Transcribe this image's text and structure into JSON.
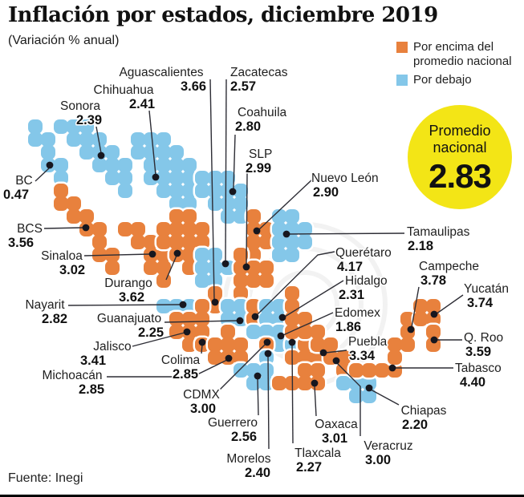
{
  "title": "Inflación por estados, diciembre 2019",
  "subtitle": "(Variación % anual)",
  "source": "Fuente: Inegi",
  "legend": {
    "above": "Por encima del promedio nacional",
    "below": "Por debajo"
  },
  "badge": {
    "line1": "Promedio",
    "line2": "nacional",
    "value": "2.83"
  },
  "colors": {
    "above": "#e8813d",
    "below": "#84c7e9",
    "badge": "#f3e516",
    "dot": "#17171f",
    "line": "#2d2d35"
  },
  "chart_data": {
    "type": "choropleth_map",
    "title": "Inflación por estados, diciembre 2019",
    "unit": "Variación % anual",
    "national_average": "2.83",
    "legend": {
      "above": "Por encima del promedio nacional",
      "below": "Por debajo"
    },
    "states": [
      {
        "name": "BC",
        "value": "0.47",
        "status": "below"
      },
      {
        "name": "BCS",
        "value": "3.56",
        "status": "above"
      },
      {
        "name": "Sonora",
        "value": "2.39",
        "status": "below"
      },
      {
        "name": "Chihuahua",
        "value": "2.41",
        "status": "below"
      },
      {
        "name": "Coahuila",
        "value": "2.80",
        "status": "below"
      },
      {
        "name": "Nuevo León",
        "value": "2.90",
        "status": "above"
      },
      {
        "name": "Tamaulipas",
        "value": "2.18",
        "status": "below"
      },
      {
        "name": "Sinaloa",
        "value": "3.02",
        "status": "above"
      },
      {
        "name": "Durango",
        "value": "3.62",
        "status": "above"
      },
      {
        "name": "Zacatecas",
        "value": "2.57",
        "status": "below"
      },
      {
        "name": "SLP",
        "value": "2.99",
        "status": "above"
      },
      {
        "name": "Aguascalientes",
        "value": "3.66",
        "status": "above"
      },
      {
        "name": "Nayarit",
        "value": "2.82",
        "status": "below"
      },
      {
        "name": "Jalisco",
        "value": "3.41",
        "status": "above"
      },
      {
        "name": "Guanajuato",
        "value": "2.25",
        "status": "below"
      },
      {
        "name": "Querétaro",
        "value": "4.17",
        "status": "above"
      },
      {
        "name": "Hidalgo",
        "value": "2.31",
        "status": "below"
      },
      {
        "name": "Edomex",
        "value": "1.86",
        "status": "below"
      },
      {
        "name": "Colima",
        "value": "2.85",
        "status": "above"
      },
      {
        "name": "Michoacán",
        "value": "2.85",
        "status": "above"
      },
      {
        "name": "CDMX",
        "value": "3.00",
        "status": "above"
      },
      {
        "name": "Morelos",
        "value": "2.40",
        "status": "below"
      },
      {
        "name": "Tlaxcala",
        "value": "2.27",
        "status": "below"
      },
      {
        "name": "Puebla",
        "value": "3.34",
        "status": "above"
      },
      {
        "name": "Guerrero",
        "value": "2.56",
        "status": "below"
      },
      {
        "name": "Oaxaca",
        "value": "3.01",
        "status": "above"
      },
      {
        "name": "Veracruz",
        "value": "3.00",
        "status": "above"
      },
      {
        "name": "Chiapas",
        "value": "2.20",
        "status": "below"
      },
      {
        "name": "Tabasco",
        "value": "4.40",
        "status": "above"
      },
      {
        "name": "Campeche",
        "value": "3.78",
        "status": "above"
      },
      {
        "name": "Yucatán",
        "value": "3.74",
        "status": "above"
      },
      {
        "name": "Q. Roo",
        "value": "3.59",
        "status": "above"
      }
    ]
  }
}
